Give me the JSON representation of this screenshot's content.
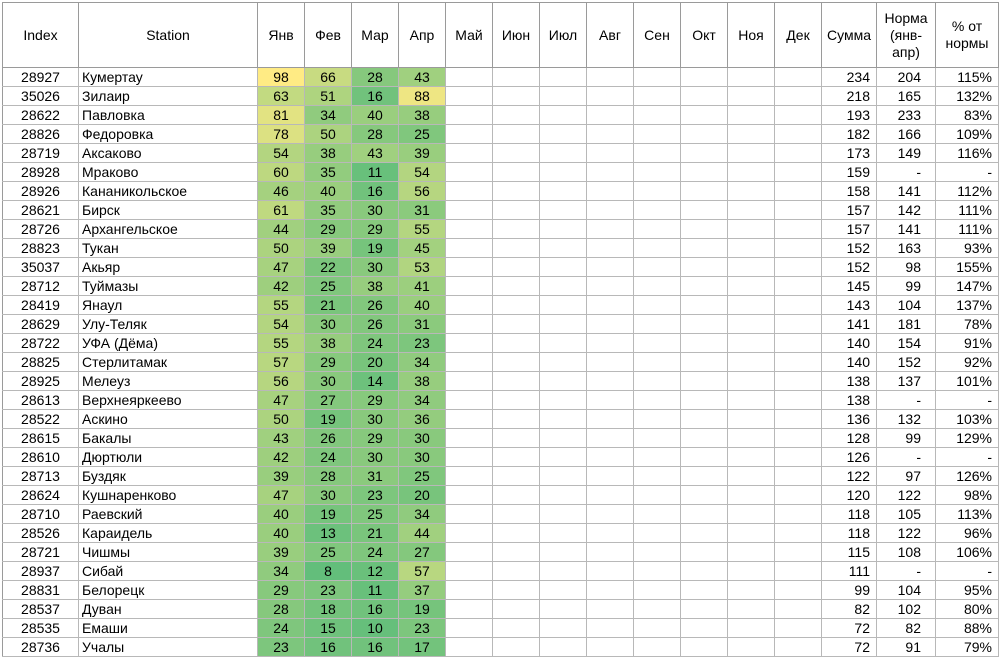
{
  "headers": {
    "index": "Index",
    "station": "Station",
    "months": [
      "Янв",
      "Фев",
      "Мар",
      "Апр",
      "Май",
      "Июн",
      "Июл",
      "Авг",
      "Сен",
      "Окт",
      "Ноя",
      "Дек"
    ],
    "sum": "Сумма",
    "norm": "Норма (янв-апр)",
    "pct": "% от нормы"
  },
  "colors": {
    "scale_low": "#63be7b",
    "scale_high": "#ffeb84",
    "value_min": 8,
    "value_max": 98
  },
  "rows": [
    {
      "index": "28927",
      "station": "Кумертау",
      "values": [
        98,
        66,
        28,
        43
      ],
      "sum": "234",
      "norm": "204",
      "pct": "115%"
    },
    {
      "index": "35026",
      "station": "Зилаир",
      "values": [
        63,
        51,
        16,
        88
      ],
      "sum": "218",
      "norm": "165",
      "pct": "132%"
    },
    {
      "index": "28622",
      "station": "Павловка",
      "values": [
        81,
        34,
        40,
        38
      ],
      "sum": "193",
      "norm": "233",
      "pct": "83%"
    },
    {
      "index": "28826",
      "station": "Федоровка",
      "values": [
        78,
        50,
        28,
        25
      ],
      "sum": "182",
      "norm": "166",
      "pct": "109%"
    },
    {
      "index": "28719",
      "station": "Аксаково",
      "values": [
        54,
        38,
        43,
        39
      ],
      "sum": "173",
      "norm": "149",
      "pct": "116%"
    },
    {
      "index": "28928",
      "station": "Мраково",
      "values": [
        60,
        35,
        11,
        54
      ],
      "sum": "159",
      "norm": "-",
      "pct": "-"
    },
    {
      "index": "28926",
      "station": "Кананикольское",
      "values": [
        46,
        40,
        16,
        56
      ],
      "sum": "158",
      "norm": "141",
      "pct": "112%"
    },
    {
      "index": "28621",
      "station": "Бирск",
      "values": [
        61,
        35,
        30,
        31
      ],
      "sum": "157",
      "norm": "142",
      "pct": "111%"
    },
    {
      "index": "28726",
      "station": "Архангельское",
      "values": [
        44,
        29,
        29,
        55
      ],
      "sum": "157",
      "norm": "141",
      "pct": "111%"
    },
    {
      "index": "28823",
      "station": "Тукан",
      "values": [
        50,
        39,
        19,
        45
      ],
      "sum": "152",
      "norm": "163",
      "pct": "93%"
    },
    {
      "index": "35037",
      "station": "Акьяр",
      "values": [
        47,
        22,
        30,
        53
      ],
      "sum": "152",
      "norm": "98",
      "pct": "155%"
    },
    {
      "index": "28712",
      "station": "Туймазы",
      "values": [
        42,
        25,
        38,
        41
      ],
      "sum": "145",
      "norm": "99",
      "pct": "147%"
    },
    {
      "index": "28419",
      "station": "Янаул",
      "values": [
        55,
        21,
        26,
        40
      ],
      "sum": "143",
      "norm": "104",
      "pct": "137%"
    },
    {
      "index": "28629",
      "station": "Улу-Теляк",
      "values": [
        54,
        30,
        26,
        31
      ],
      "sum": "141",
      "norm": "181",
      "pct": "78%"
    },
    {
      "index": "28722",
      "station": "УФА (Дёма)",
      "values": [
        55,
        38,
        24,
        23
      ],
      "sum": "140",
      "norm": "154",
      "pct": "91%"
    },
    {
      "index": "28825",
      "station": "Стерлитамак",
      "values": [
        57,
        29,
        20,
        34
      ],
      "sum": "140",
      "norm": "152",
      "pct": "92%"
    },
    {
      "index": "28925",
      "station": "Мелеуз",
      "values": [
        56,
        30,
        14,
        38
      ],
      "sum": "138",
      "norm": "137",
      "pct": "101%"
    },
    {
      "index": "28613",
      "station": "Верхнеяркеево",
      "values": [
        47,
        27,
        29,
        34
      ],
      "sum": "138",
      "norm": "-",
      "pct": "-"
    },
    {
      "index": "28522",
      "station": "Аскино",
      "values": [
        50,
        19,
        30,
        36
      ],
      "sum": "136",
      "norm": "132",
      "pct": "103%"
    },
    {
      "index": "28615",
      "station": "Бакалы",
      "values": [
        43,
        26,
        29,
        30
      ],
      "sum": "128",
      "norm": "99",
      "pct": "129%"
    },
    {
      "index": "28610",
      "station": "Дюртюли",
      "values": [
        42,
        24,
        30,
        30
      ],
      "sum": "126",
      "norm": "-",
      "pct": "-"
    },
    {
      "index": "28713",
      "station": "Буздяк",
      "values": [
        39,
        28,
        31,
        25
      ],
      "sum": "122",
      "norm": "97",
      "pct": "126%"
    },
    {
      "index": "28624",
      "station": "Кушнаренково",
      "values": [
        47,
        30,
        23,
        20
      ],
      "sum": "120",
      "norm": "122",
      "pct": "98%"
    },
    {
      "index": "28710",
      "station": "Раевский",
      "values": [
        40,
        19,
        25,
        34
      ],
      "sum": "118",
      "norm": "105",
      "pct": "113%"
    },
    {
      "index": "28526",
      "station": "Караидель",
      "values": [
        40,
        13,
        21,
        44
      ],
      "sum": "118",
      "norm": "122",
      "pct": "96%"
    },
    {
      "index": "28721",
      "station": "Чишмы",
      "values": [
        39,
        25,
        24,
        27
      ],
      "sum": "115",
      "norm": "108",
      "pct": "106%"
    },
    {
      "index": "28937",
      "station": "Сибай",
      "values": [
        34,
        8,
        12,
        57
      ],
      "sum": "111",
      "norm": "-",
      "pct": "-"
    },
    {
      "index": "28831",
      "station": "Белорецк",
      "values": [
        29,
        23,
        11,
        37
      ],
      "sum": "99",
      "norm": "104",
      "pct": "95%"
    },
    {
      "index": "28537",
      "station": "Дуван",
      "values": [
        28,
        18,
        16,
        19
      ],
      "sum": "82",
      "norm": "102",
      "pct": "80%"
    },
    {
      "index": "28535",
      "station": "Емаши",
      "values": [
        24,
        15,
        10,
        23
      ],
      "sum": "72",
      "norm": "82",
      "pct": "88%"
    },
    {
      "index": "28736",
      "station": "Учалы",
      "values": [
        23,
        16,
        16,
        17
      ],
      "sum": "72",
      "norm": "91",
      "pct": "79%"
    }
  ]
}
